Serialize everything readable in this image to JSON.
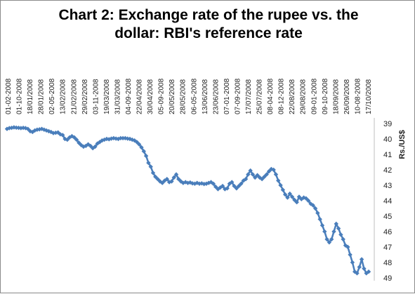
{
  "chart_data": {
    "type": "line",
    "title_line1": "Chart 2:  Exchange rate of the rupee vs. the",
    "title_line2": "dollar: RBI's reference rate",
    "xlabel": "",
    "ylabel": "Rs./US$",
    "y_axis_position": "right",
    "y_inverted": true,
    "ylim": [
      39,
      49
    ],
    "y_ticks": [
      39,
      40,
      41,
      42,
      43,
      44,
      45,
      46,
      47,
      48,
      49
    ],
    "grid": false,
    "legend": "none",
    "x_tick_labels": [
      "01-02-2008",
      "01-10-2008",
      "18/01/2008",
      "28/01/2008",
      "02-05-2008",
      "13/02/2008",
      "21/02/2008",
      "29/02/2008",
      "03-11-2008",
      "19/03/2008",
      "31/03/2008",
      "04-09-2008",
      "22/04/2008",
      "30/04/2008",
      "05-09-2008",
      "20/05/2008",
      "28/05/2008",
      "06-05-2008",
      "13/06/2008",
      "23/06/2008",
      "07-01-2008",
      "07-09-2008",
      "17/07/2008",
      "25/07/2008",
      "08-04-2008",
      "08-12-2008",
      "22/08/2008",
      "29/08/2008",
      "09-01-2008",
      "09-10-2008",
      "18/09/2008",
      "26/09/2008",
      "10-08-2008",
      "17/10/2008"
    ],
    "series": [
      {
        "color": "#4a7ebb",
        "values": [
          39.35,
          39.3,
          39.28,
          39.25,
          39.27,
          39.28,
          39.3,
          39.28,
          39.3,
          39.35,
          39.5,
          39.55,
          39.45,
          39.4,
          39.38,
          39.35,
          39.4,
          39.45,
          39.5,
          39.55,
          39.62,
          39.6,
          39.58,
          39.7,
          39.75,
          40.0,
          40.05,
          39.9,
          39.82,
          39.9,
          40.05,
          40.25,
          40.4,
          40.5,
          40.45,
          40.35,
          40.45,
          40.6,
          40.5,
          40.3,
          40.2,
          40.1,
          40.05,
          40.0,
          40.02,
          39.98,
          39.95,
          39.98,
          40.0,
          39.95,
          39.95,
          39.95,
          39.98,
          40.0,
          40.05,
          40.1,
          40.2,
          40.35,
          40.55,
          40.8,
          41.1,
          41.55,
          41.8,
          42.2,
          42.45,
          42.6,
          42.75,
          42.85,
          42.7,
          42.6,
          42.8,
          42.75,
          42.5,
          42.3,
          42.6,
          42.75,
          42.85,
          42.8,
          42.85,
          42.82,
          42.88,
          42.9,
          42.85,
          42.9,
          42.88,
          42.92,
          42.9,
          42.85,
          42.8,
          42.9,
          43.1,
          43.25,
          43.15,
          43.05,
          43.25,
          43.2,
          42.9,
          42.8,
          43.05,
          43.2,
          43.05,
          42.9,
          42.7,
          42.6,
          42.3,
          42.05,
          42.3,
          42.5,
          42.35,
          42.5,
          42.6,
          42.45,
          42.3,
          42.1,
          41.95,
          42.0,
          42.3,
          42.7,
          43.0,
          43.3,
          43.6,
          43.8,
          43.55,
          43.75,
          43.95,
          44.1,
          43.75,
          43.9,
          43.8,
          43.85,
          44.0,
          44.2,
          44.3,
          44.5,
          44.8,
          45.2,
          45.6,
          46.0,
          46.5,
          46.7,
          46.5,
          46.0,
          45.5,
          45.8,
          46.2,
          46.5,
          46.9,
          47.0,
          47.5,
          48.0,
          48.6,
          48.7,
          48.3,
          47.8,
          48.4,
          48.7,
          48.6
        ]
      }
    ]
  }
}
